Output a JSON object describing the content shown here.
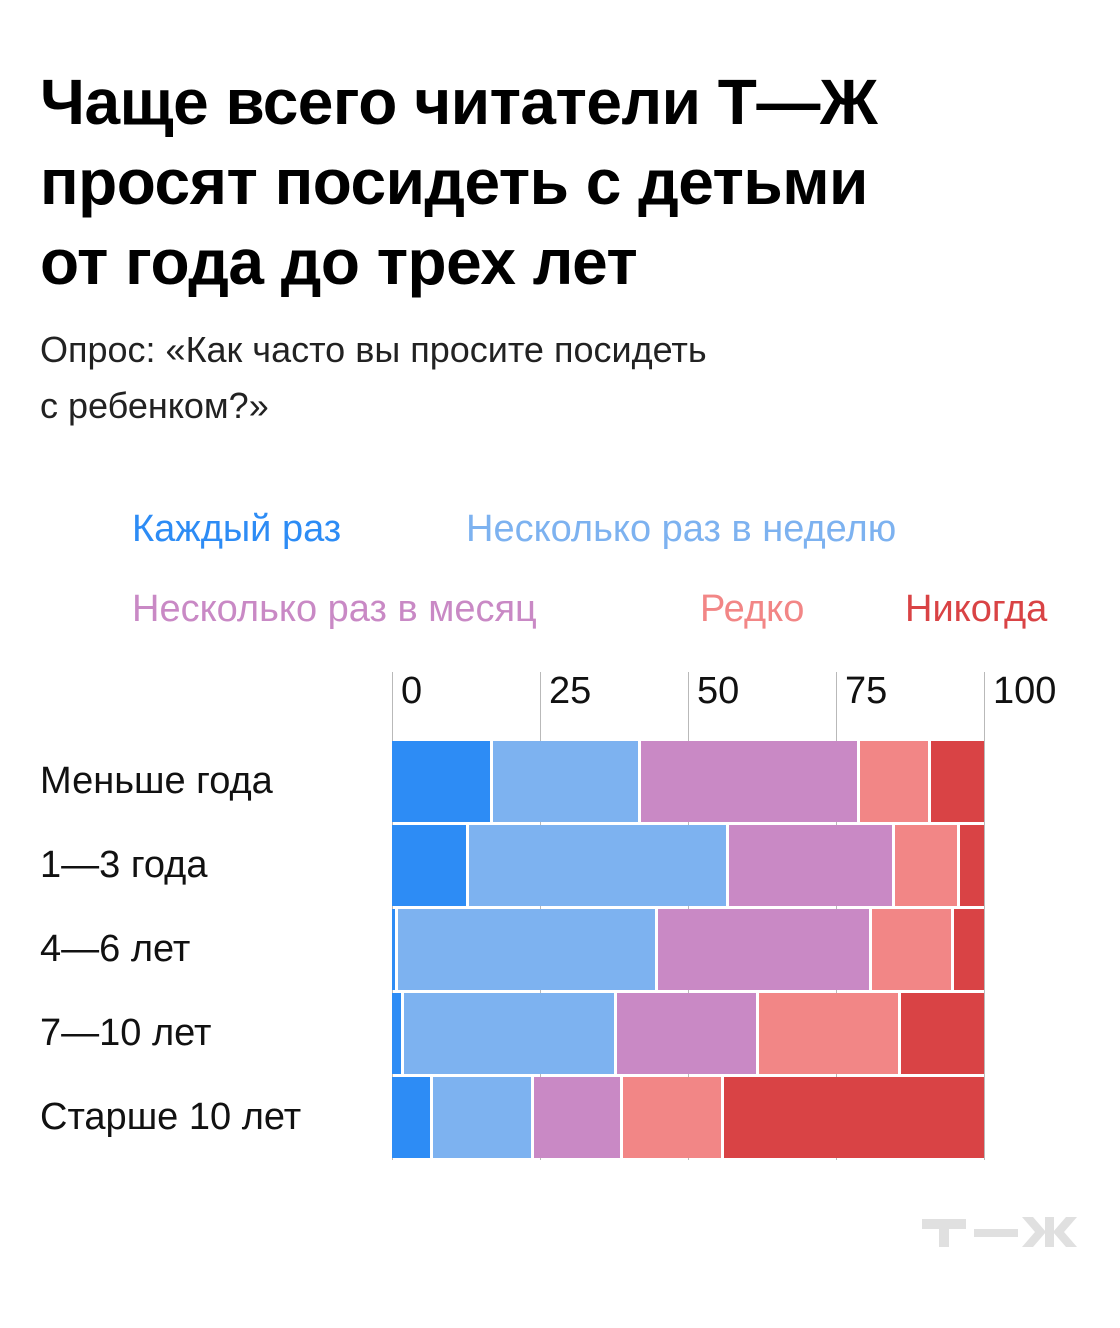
{
  "title_lines": [
    "Чаще всего читатели Т—Ж",
    "просят посидеть с детьми",
    "от года до трех лет"
  ],
  "subtitle_lines": [
    "Опрос: «Как часто вы просите посидеть",
    "с ребенком?»"
  ],
  "watermark": "т—ж",
  "chart_data": {
    "type": "bar",
    "orientation": "horizontal",
    "stacked": true,
    "title": "Чаще всего читатели Т—Ж просят посидеть с детьми от года до трех лет",
    "subtitle": "Опрос: «Как часто вы просите посидеть с ребенком?»",
    "categories": [
      "Меньше года",
      "1—3 года",
      "4—6 лет",
      "7—10 лет",
      "Старше 10 лет"
    ],
    "xlim": [
      0,
      100
    ],
    "xticks": [
      "0",
      "25",
      "50",
      "75",
      "100"
    ],
    "grid": true,
    "legend_position": "top",
    "series": [
      {
        "name": "Каждый раз",
        "color": "#2d8cf5",
        "values": [
          17,
          13,
          1,
          2,
          7
        ]
      },
      {
        "name": "Несколько раз в неделю",
        "color": "#7db2f0",
        "values": [
          25,
          44,
          44,
          36,
          17
        ]
      },
      {
        "name": "Несколько раз в месяц",
        "color": "#c989c5",
        "values": [
          37,
          28,
          36,
          24,
          15
        ]
      },
      {
        "name": "Редко",
        "color": "#f28686",
        "values": [
          12,
          11,
          14,
          24,
          17
        ]
      },
      {
        "name": "Никогда",
        "color": "#d94345",
        "values": [
          9,
          4,
          5,
          14,
          44
        ]
      }
    ]
  }
}
